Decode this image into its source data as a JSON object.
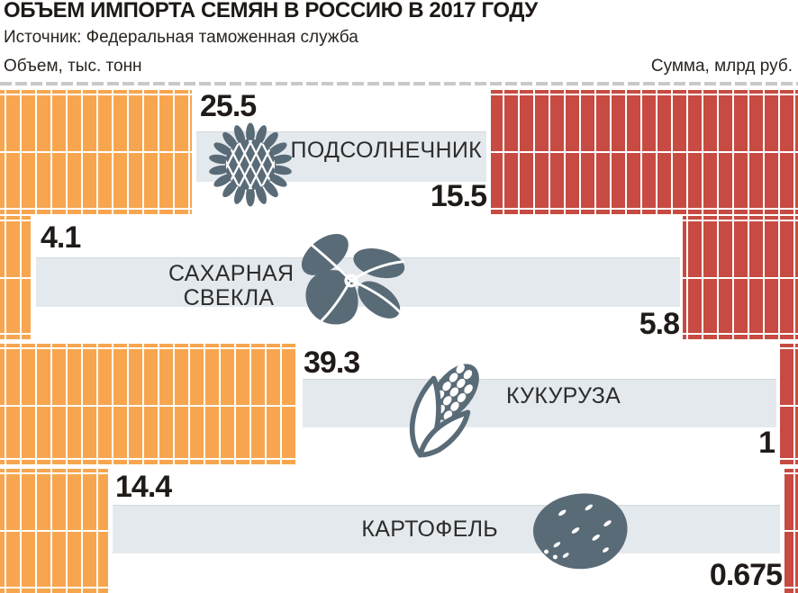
{
  "header": {
    "title": "ОБЪЕМ ИМПОРТА СЕМЯН В РОССИЮ В 2017 ГОДУ",
    "source": "Источник: Федеральная таможенная служба",
    "left_axis": "Объем, тыс. тонн",
    "right_axis": "Сумма, млрд руб."
  },
  "colors": {
    "volume_bar_orange": "#F7A64F",
    "sum_bar_red": "#C74B42",
    "category_band_gray": "#E4E9ED",
    "icon_slate": "#5A6B78",
    "text_dark": "#201B18"
  },
  "rows": [
    {
      "label": "ПОДСОЛНЕЧНИК",
      "icon": "sunflower-icon",
      "volume": "25.5",
      "sum": "15.5"
    },
    {
      "label": "САХАРНАЯ СВЕКЛА",
      "icon": "beet-icon",
      "volume": "4.1",
      "sum": "5.8"
    },
    {
      "label": "КУКУРУЗА",
      "icon": "corn-icon",
      "volume": "39.3",
      "sum": "1"
    },
    {
      "label": "КАРТОФЕЛЬ",
      "icon": "potato-icon",
      "volume": "14.4",
      "sum": "0.675"
    }
  ],
  "chart_data": {
    "type": "bar",
    "title": "ОБЪЕМ ИМПОРТА СЕМЯН В РОССИЮ В 2017 ГОДУ",
    "subtitle": "Источник: Федеральная таможенная служба",
    "categories": [
      "ПОДСОЛНЕЧНИК",
      "САХАРНАЯ СВЕКЛА",
      "КУКУРУЗА",
      "КАРТОФЕЛЬ"
    ],
    "series": [
      {
        "name": "Объем, тыс. тонн",
        "values": [
          25.5,
          4.1,
          39.3,
          14.4
        ]
      },
      {
        "name": "Сумма, млрд руб.",
        "values": [
          15.5,
          5.8,
          1,
          0.675
        ]
      }
    ],
    "layout": "paired horizontal pictorial bars; volume bars anchored left, sum bars anchored right",
    "grid": false,
    "legend_position": "axis captions top-left and top-right"
  }
}
